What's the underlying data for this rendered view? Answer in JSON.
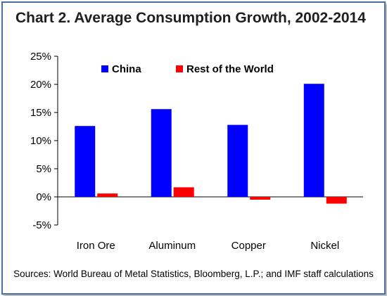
{
  "title": "Chart 2. Average Consumption Growth, 2002-2014",
  "source": "Sources: World Bureau of Metal Statistics, Bloomberg, L.P.; and IMF staff calculations",
  "colors": {
    "china": "#0000ff",
    "rest_of_world": "#ff0000",
    "frame": "#4a6fa5"
  },
  "chart_data": {
    "type": "bar",
    "categories": [
      "Iron Ore",
      "Aluminum",
      "Copper",
      "Nickel"
    ],
    "series": [
      {
        "name": "China",
        "values": [
          12.6,
          15.6,
          12.8,
          20.1
        ]
      },
      {
        "name": "Rest of the World",
        "values": [
          0.6,
          1.7,
          -0.5,
          -1.2
        ]
      }
    ],
    "ylim": [
      -5,
      25
    ],
    "ytick_labels": [
      "-5%",
      "0%",
      "5%",
      "10%",
      "15%",
      "20%",
      "25%"
    ],
    "legend": "top",
    "grid": false
  }
}
